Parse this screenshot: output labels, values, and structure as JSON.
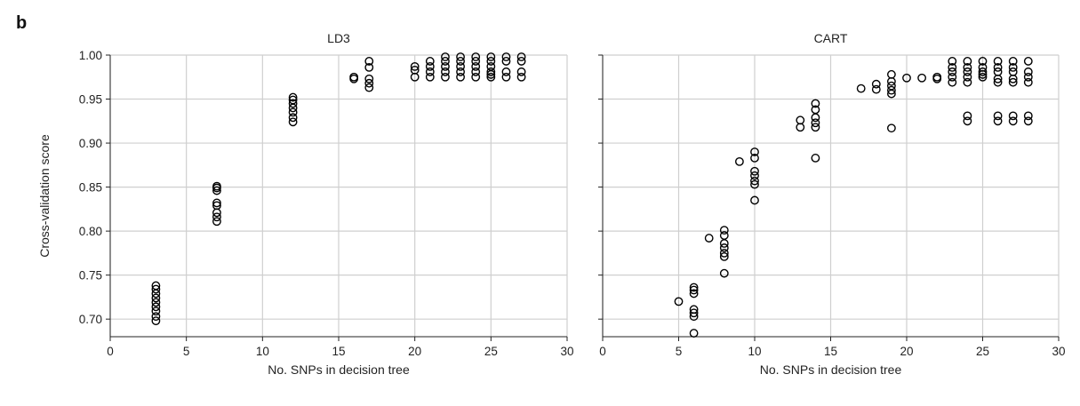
{
  "panel_label": "b",
  "chart_data": [
    {
      "type": "scatter",
      "title": "LD3",
      "xlabel": "No. SNPs in decision tree",
      "ylabel": "Cross-validation score",
      "xlim": [
        0,
        30
      ],
      "ylim": [
        0.68,
        1.0
      ],
      "xticks": [
        "0",
        "5",
        "10",
        "15",
        "20",
        "25",
        "30"
      ],
      "yticks": [
        "0.70",
        "0.75",
        "0.80",
        "0.85",
        "0.90",
        "0.95",
        "1.00"
      ],
      "grid": true,
      "points": [
        [
          3,
          0.698
        ],
        [
          3,
          0.703
        ],
        [
          3,
          0.709
        ],
        [
          3,
          0.714
        ],
        [
          3,
          0.719
        ],
        [
          3,
          0.724
        ],
        [
          3,
          0.729
        ],
        [
          3,
          0.734
        ],
        [
          3,
          0.738
        ],
        [
          7,
          0.811
        ],
        [
          7,
          0.816
        ],
        [
          7,
          0.821
        ],
        [
          7,
          0.829
        ],
        [
          7,
          0.832
        ],
        [
          7,
          0.846
        ],
        [
          7,
          0.849
        ],
        [
          7,
          0.851
        ],
        [
          12,
          0.924
        ],
        [
          12,
          0.929
        ],
        [
          12,
          0.935
        ],
        [
          12,
          0.94
        ],
        [
          12,
          0.945
        ],
        [
          12,
          0.949
        ],
        [
          12,
          0.952
        ],
        [
          16,
          0.973
        ],
        [
          16,
          0.975
        ],
        [
          17,
          0.963
        ],
        [
          17,
          0.968
        ],
        [
          17,
          0.973
        ],
        [
          17,
          0.986
        ],
        [
          17,
          0.993
        ],
        [
          20,
          0.975
        ],
        [
          20,
          0.983
        ],
        [
          20,
          0.987
        ],
        [
          21,
          0.975
        ],
        [
          21,
          0.981
        ],
        [
          21,
          0.987
        ],
        [
          21,
          0.993
        ],
        [
          22,
          0.975
        ],
        [
          22,
          0.981
        ],
        [
          22,
          0.987
        ],
        [
          22,
          0.993
        ],
        [
          22,
          0.998
        ],
        [
          23,
          0.975
        ],
        [
          23,
          0.981
        ],
        [
          23,
          0.987
        ],
        [
          23,
          0.993
        ],
        [
          23,
          0.998
        ],
        [
          24,
          0.975
        ],
        [
          24,
          0.981
        ],
        [
          24,
          0.987
        ],
        [
          24,
          0.993
        ],
        [
          24,
          0.998
        ],
        [
          25,
          0.975
        ],
        [
          25,
          0.978
        ],
        [
          25,
          0.981
        ],
        [
          25,
          0.987
        ],
        [
          25,
          0.993
        ],
        [
          25,
          0.998
        ],
        [
          26,
          0.975
        ],
        [
          26,
          0.981
        ],
        [
          26,
          0.993
        ],
        [
          26,
          0.998
        ],
        [
          27,
          0.975
        ],
        [
          27,
          0.981
        ],
        [
          27,
          0.993
        ],
        [
          27,
          0.998
        ]
      ]
    },
    {
      "type": "scatter",
      "title": "CART",
      "xlabel": "No. SNPs in decision tree",
      "ylabel": "",
      "xlim": [
        0,
        30
      ],
      "ylim": [
        0.68,
        1.0
      ],
      "xticks": [
        "0",
        "5",
        "10",
        "15",
        "20",
        "25",
        "30"
      ],
      "yticks": [
        "",
        "",
        "",
        "",
        "",
        "",
        ""
      ],
      "grid": true,
      "points": [
        [
          5,
          0.72
        ],
        [
          6,
          0.684
        ],
        [
          6,
          0.703
        ],
        [
          6,
          0.707
        ],
        [
          6,
          0.711
        ],
        [
          6,
          0.729
        ],
        [
          6,
          0.733
        ],
        [
          6,
          0.736
        ],
        [
          7,
          0.792
        ],
        [
          8,
          0.752
        ],
        [
          8,
          0.771
        ],
        [
          8,
          0.775
        ],
        [
          8,
          0.781
        ],
        [
          8,
          0.786
        ],
        [
          8,
          0.795
        ],
        [
          8,
          0.801
        ],
        [
          9,
          0.879
        ],
        [
          10,
          0.835
        ],
        [
          10,
          0.853
        ],
        [
          10,
          0.857
        ],
        [
          10,
          0.863
        ],
        [
          10,
          0.868
        ],
        [
          10,
          0.883
        ],
        [
          10,
          0.89
        ],
        [
          13,
          0.918
        ],
        [
          13,
          0.926
        ],
        [
          14,
          0.883
        ],
        [
          14,
          0.918
        ],
        [
          14,
          0.923
        ],
        [
          14,
          0.929
        ],
        [
          14,
          0.938
        ],
        [
          14,
          0.945
        ],
        [
          17,
          0.962
        ],
        [
          18,
          0.961
        ],
        [
          18,
          0.967
        ],
        [
          19,
          0.917
        ],
        [
          19,
          0.956
        ],
        [
          19,
          0.96
        ],
        [
          19,
          0.965
        ],
        [
          19,
          0.97
        ],
        [
          19,
          0.978
        ],
        [
          20,
          0.974
        ],
        [
          21,
          0.974
        ],
        [
          22,
          0.973
        ],
        [
          22,
          0.975
        ],
        [
          23,
          0.969
        ],
        [
          23,
          0.975
        ],
        [
          23,
          0.981
        ],
        [
          23,
          0.986
        ],
        [
          23,
          0.993
        ],
        [
          24,
          0.925
        ],
        [
          24,
          0.931
        ],
        [
          24,
          0.969
        ],
        [
          24,
          0.975
        ],
        [
          24,
          0.981
        ],
        [
          24,
          0.986
        ],
        [
          24,
          0.993
        ],
        [
          25,
          0.975
        ],
        [
          25,
          0.978
        ],
        [
          25,
          0.981
        ],
        [
          25,
          0.986
        ],
        [
          25,
          0.993
        ],
        [
          26,
          0.925
        ],
        [
          26,
          0.931
        ],
        [
          26,
          0.969
        ],
        [
          26,
          0.973
        ],
        [
          26,
          0.981
        ],
        [
          26,
          0.986
        ],
        [
          26,
          0.993
        ],
        [
          27,
          0.925
        ],
        [
          27,
          0.931
        ],
        [
          27,
          0.969
        ],
        [
          27,
          0.973
        ],
        [
          27,
          0.981
        ],
        [
          27,
          0.986
        ],
        [
          27,
          0.993
        ],
        [
          28,
          0.925
        ],
        [
          28,
          0.931
        ],
        [
          28,
          0.969
        ],
        [
          28,
          0.975
        ],
        [
          28,
          0.981
        ],
        [
          28,
          0.993
        ]
      ]
    }
  ]
}
